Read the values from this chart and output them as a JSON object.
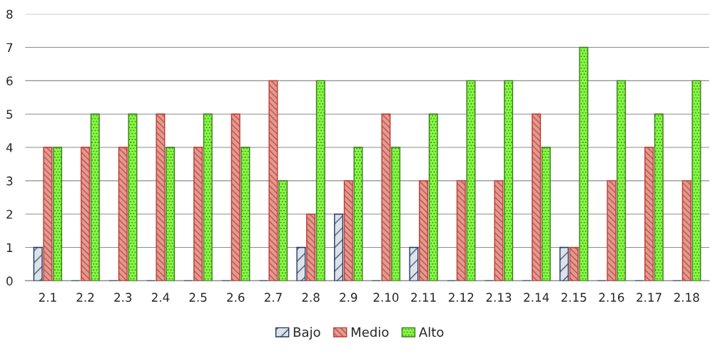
{
  "chart_data": {
    "type": "bar",
    "categories": [
      "2.1",
      "2.2",
      "2.3",
      "2.4",
      "2.5",
      "2.6",
      "2.7",
      "2.8",
      "2.9",
      "2.10",
      "2.11",
      "2.12",
      "2.13",
      "2.14",
      "2.15",
      "2.16",
      "2.17",
      "2.18"
    ],
    "series": [
      {
        "name": "Bajo",
        "color": "#1f3864",
        "values": [
          1,
          0,
          0,
          0,
          0,
          0,
          0,
          1,
          2,
          0,
          1,
          0,
          0,
          0,
          1,
          0,
          0,
          0
        ]
      },
      {
        "name": "Medio",
        "color": "#c0392b",
        "values": [
          4,
          4,
          4,
          5,
          4,
          5,
          6,
          2,
          3,
          5,
          3,
          3,
          3,
          5,
          1,
          3,
          4,
          3
        ]
      },
      {
        "name": "Alto",
        "color": "#3d7a1e",
        "values": [
          4,
          5,
          5,
          4,
          5,
          4,
          3,
          6,
          4,
          4,
          5,
          6,
          6,
          4,
          7,
          6,
          5,
          6
        ]
      }
    ],
    "ylim": [
      0,
      8
    ],
    "yticks": [
      0,
      1,
      2,
      3,
      4,
      5,
      6,
      7,
      8
    ],
    "grid": "y",
    "legend": "bottom"
  }
}
